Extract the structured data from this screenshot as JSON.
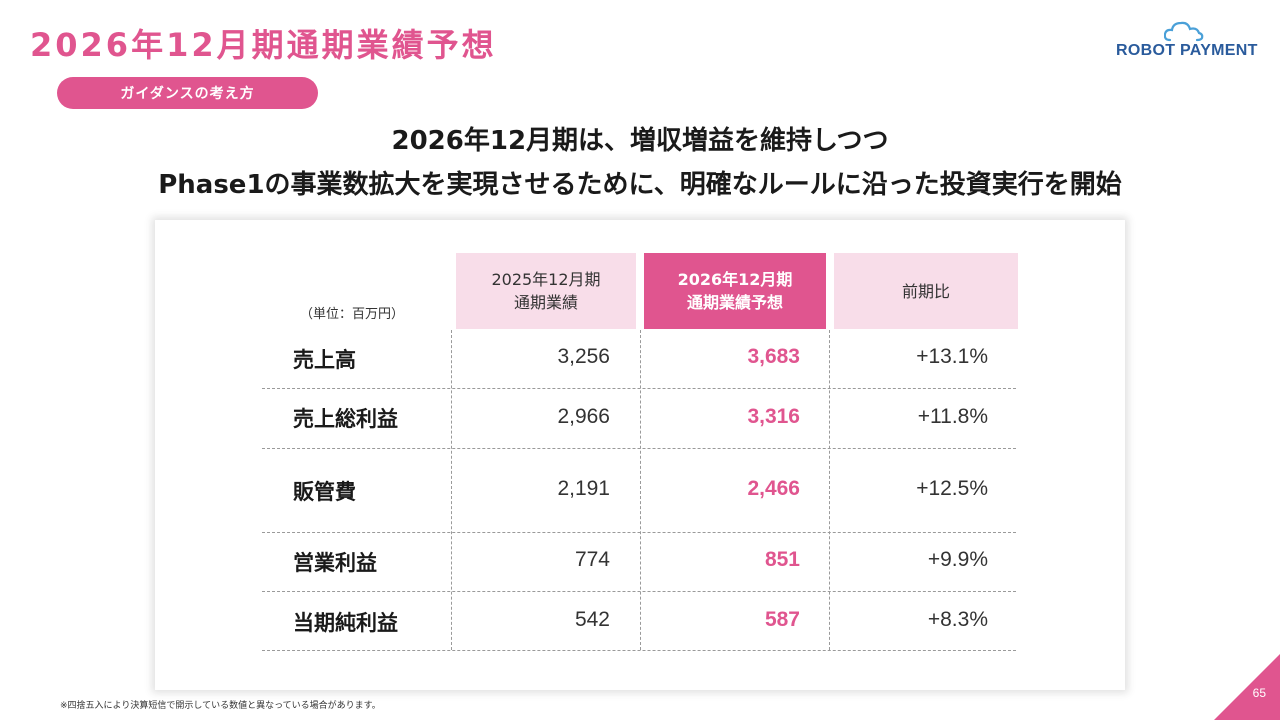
{
  "header": {
    "title": "2026年12月期通期業績予想",
    "logo_text": "ROBOT PAYMENT"
  },
  "section_pill": "ガイダンスの考え方",
  "headline": {
    "line1": "2026年12月期は、増収増益を維持しつつ",
    "line2": "Phase1の事業数拡大を実現させるために、明確なルールに沿った投資実行を開始"
  },
  "table": {
    "unit": "（単位：百万円）",
    "columns": [
      {
        "line1": "2025年12月期",
        "line2": "通期業績"
      },
      {
        "line1": "2026年12月期",
        "line2": "通期業績予想"
      },
      {
        "line1": "前期比",
        "line2": ""
      }
    ],
    "rows": [
      {
        "label": "売上高",
        "fy2025": "3,256",
        "fy2026": "3,683",
        "yoy": "+13.1%"
      },
      {
        "label": "売上総利益",
        "fy2025": "2,966",
        "fy2026": "3,316",
        "yoy": "+11.8%"
      },
      {
        "label": "販管費",
        "fy2025": "2,191",
        "fy2026": "2,466",
        "yoy": "+12.5%"
      },
      {
        "label": "営業利益",
        "fy2025": "774",
        "fy2026": "851",
        "yoy": "+9.9%"
      },
      {
        "label": "当期純利益",
        "fy2025": "542",
        "fy2026": "587",
        "yoy": "+8.3%"
      }
    ]
  },
  "footnote": "※四捨五入により決算短信で開示している数値と異なっている場合があります。",
  "page_number": "65",
  "colors": {
    "accent": "#e0558f",
    "accent_light": "#f8dde9",
    "logo_blue": "#2a5b9c",
    "logo_cloud": "#4aa0d8"
  }
}
